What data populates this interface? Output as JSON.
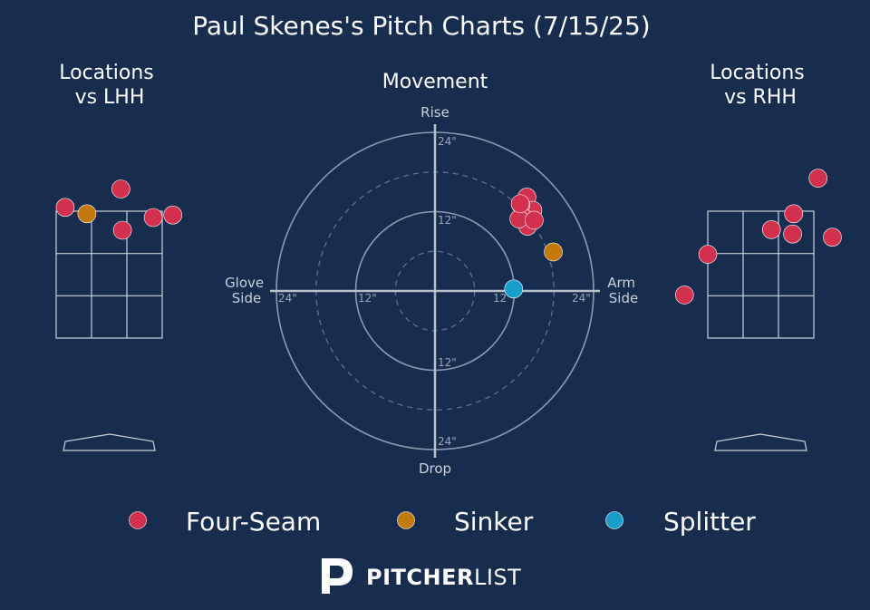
{
  "title": "Paul Skenes's Pitch Charts (7/15/25)",
  "brand": {
    "bold": "PITCHER",
    "light": "LIST"
  },
  "colors": {
    "background": "#162d50",
    "four_seam": "#d4304d",
    "sinker": "#c47a08",
    "splitter": "#159fc9"
  },
  "chart_data": [
    {
      "type": "scatter",
      "title": "Locations\nvs LHH",
      "zone": {
        "rows": 3,
        "cols": 3
      },
      "points": [
        {
          "pitch": "Four-Seam",
          "x": 0.22,
          "y": 1.35
        },
        {
          "pitch": "Four-Seam",
          "x": -0.83,
          "y": 1.06
        },
        {
          "pitch": "Sinker",
          "x": -0.42,
          "y": 0.96
        },
        {
          "pitch": "Four-Seam",
          "x": 0.83,
          "y": 0.9
        },
        {
          "pitch": "Four-Seam",
          "x": 1.2,
          "y": 0.94
        },
        {
          "pitch": "Four-Seam",
          "x": 0.25,
          "y": 0.7
        }
      ]
    },
    {
      "type": "scatter",
      "title": "Movement",
      "axis_labels": {
        "top": "Rise",
        "bottom": "Drop",
        "left": "Glove\nSide",
        "right": "Arm\nSide"
      },
      "rings": [
        6,
        12,
        18,
        24
      ],
      "ring_labels": [
        "24\"",
        "12\"",
        "12\"",
        "24\"",
        "12\"",
        "24\""
      ],
      "points": [
        {
          "pitch": "Four-Seam",
          "x": 13.9,
          "y": 14.2
        },
        {
          "pitch": "Four-Seam",
          "x": 14.8,
          "y": 12.2
        },
        {
          "pitch": "Four-Seam",
          "x": 13.0,
          "y": 13.0
        },
        {
          "pitch": "Four-Seam",
          "x": 13.5,
          "y": 11.0
        },
        {
          "pitch": "Four-Seam",
          "x": 14.0,
          "y": 9.8
        },
        {
          "pitch": "Four-Seam",
          "x": 12.7,
          "y": 10.9
        },
        {
          "pitch": "Four-Seam",
          "x": 15.0,
          "y": 10.7
        },
        {
          "pitch": "Four-Seam",
          "x": 12.9,
          "y": 13.2
        },
        {
          "pitch": "Sinker",
          "x": 17.9,
          "y": 5.9
        },
        {
          "pitch": "Splitter",
          "x": 11.9,
          "y": 0.3
        }
      ]
    },
    {
      "type": "scatter",
      "title": "Locations\nvs RHH",
      "zone": {
        "rows": 3,
        "cols": 3
      },
      "points": [
        {
          "pitch": "Four-Seam",
          "x": 1.08,
          "y": 1.52
        },
        {
          "pitch": "Four-Seam",
          "x": 0.62,
          "y": 0.96
        },
        {
          "pitch": "Four-Seam",
          "x": 0.2,
          "y": 0.71
        },
        {
          "pitch": "Four-Seam",
          "x": 0.6,
          "y": 0.64
        },
        {
          "pitch": "Four-Seam",
          "x": 1.35,
          "y": 0.59
        },
        {
          "pitch": "Four-Seam",
          "x": -1.0,
          "y": 0.32
        },
        {
          "pitch": "Four-Seam",
          "x": -1.44,
          "y": -0.32
        }
      ]
    }
  ],
  "legend": [
    {
      "label": "Four-Seam",
      "color": "#d4304d"
    },
    {
      "label": "Sinker",
      "color": "#c47a08"
    },
    {
      "label": "Splitter",
      "color": "#159fc9"
    }
  ]
}
